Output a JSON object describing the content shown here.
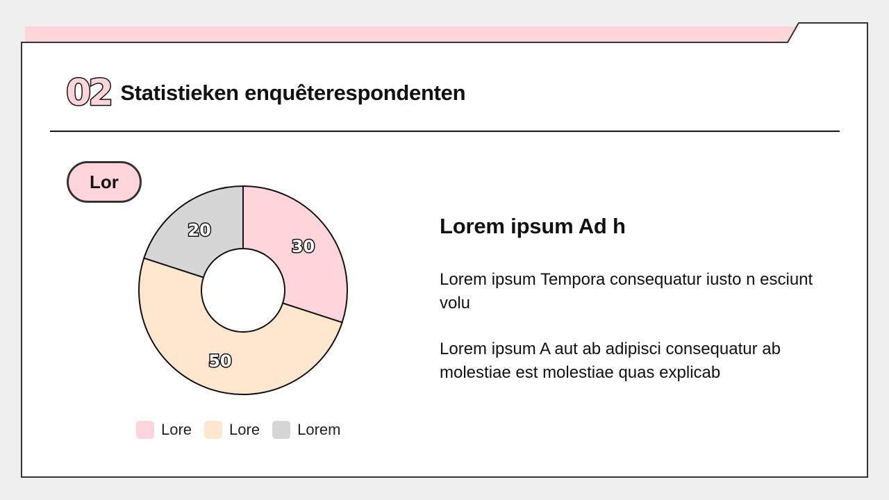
{
  "header": {
    "section_number": "02",
    "title": "Statistieken enquêterespondenten"
  },
  "chart_label": "Lor",
  "chart_data": {
    "type": "pie",
    "donut": true,
    "categories": [
      "Lore",
      "Lore",
      "Lorem"
    ],
    "values": [
      30,
      50,
      20
    ],
    "colors": [
      "#ffd5dc",
      "#ffe6cf",
      "#d6d6d6"
    ],
    "title": "",
    "legend_placement": "bottom"
  },
  "content": {
    "heading": "Lorem ipsum Ad h",
    "paragraphs": [
      "Lorem ipsum Tempora consequatur iusto n esciunt volu",
      "Lorem ipsum A aut ab adipisci consequatur ab molestiae est molestiae quas explicab"
    ]
  },
  "colors": {
    "accent_pink": "#ffd5dc",
    "outline": "#333333",
    "background": "#efefef",
    "card": "#ffffff"
  }
}
